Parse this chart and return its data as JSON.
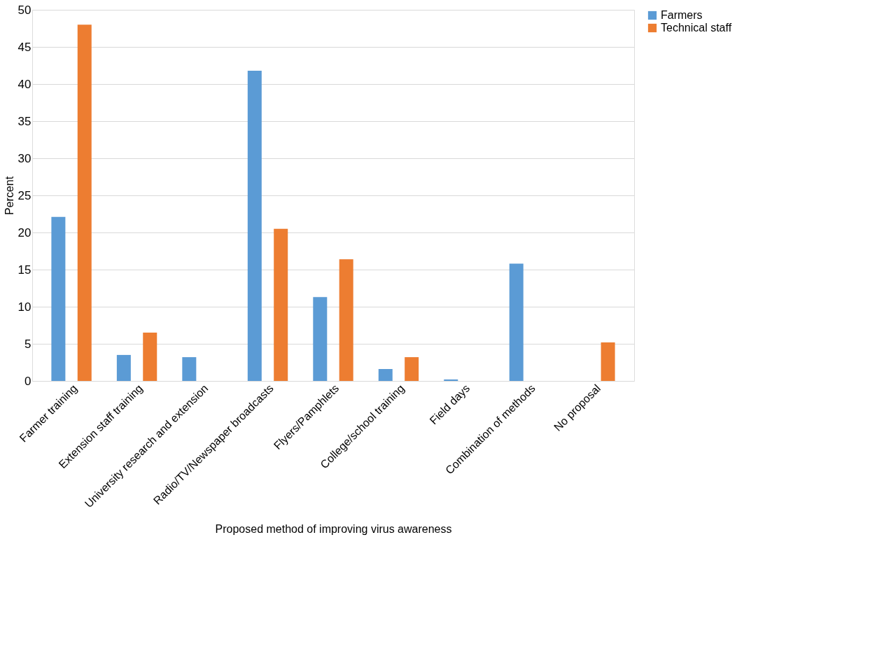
{
  "chart_data": {
    "type": "bar",
    "xlabel": "Proposed method of improving virus awareness",
    "ylabel": "Percent",
    "categories": [
      "Farmer training",
      "Extension staff training",
      "University research and extension",
      "Radio/TV/Newspaper broadcasts",
      "Flyers/Pamphlets",
      "College/school training",
      "Field days",
      "Combination of methods",
      "No proposal"
    ],
    "series": [
      {
        "name": "Farmers",
        "color": "#5b9bd5",
        "values": [
          22.1,
          3.5,
          3.2,
          41.8,
          11.3,
          1.6,
          0.2,
          15.8,
          0
        ]
      },
      {
        "name": "Technical staff",
        "color": "#ed7d31",
        "values": [
          48.0,
          6.5,
          0,
          20.5,
          16.4,
          3.2,
          0,
          0,
          5.2
        ]
      }
    ],
    "ylim": [
      0,
      50
    ],
    "yticks": [
      0,
      5,
      10,
      15,
      20,
      25,
      30,
      35,
      40,
      45,
      50
    ],
    "grid": "y",
    "legend": "right"
  }
}
